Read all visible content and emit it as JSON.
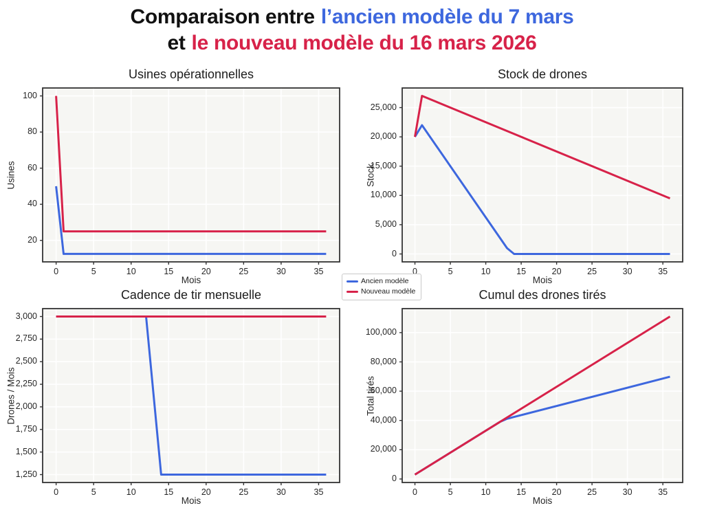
{
  "header": {
    "line1_prefix": "Comparaison entre",
    "line1_old_model": "l’ancien modèle du 7 mars",
    "line2_prefix": "et",
    "line2_new_model": "le nouveau modèle du 16 mars 2026"
  },
  "colors": {
    "old_model_blue": "#3D67DE",
    "new_model_red": "#D72249",
    "title_black": "#111111",
    "axis_text": "#262626",
    "plot_bg": "#F6F6F3",
    "grid": "#FFFFFF",
    "spine": "#333333"
  },
  "legend": {
    "items": [
      {
        "label": "Ancien modèle",
        "color": "#3D67DE"
      },
      {
        "label": "Nouveau modèle",
        "color": "#D72249"
      }
    ]
  },
  "chart_data": [
    {
      "type": "line",
      "title": "Usines opérationnelles",
      "xlabel": "Mois",
      "ylabel": "Usines",
      "xlim": [
        -1.8,
        37.8
      ],
      "ylim": [
        8.1,
        104.4
      ],
      "xticks": [
        0,
        5,
        10,
        15,
        20,
        25,
        30,
        35
      ],
      "yticks": [
        20,
        40,
        60,
        80,
        100
      ],
      "grid": true,
      "legend_position": "figure-center",
      "series": [
        {
          "name": "Ancien modèle",
          "color": "#3D67DE",
          "points": [
            [
              0,
              50
            ],
            [
              1,
              12.5
            ],
            [
              36,
              12.5
            ]
          ]
        },
        {
          "name": "Nouveau modèle",
          "color": "#D72249",
          "points": [
            [
              0,
              100
            ],
            [
              1,
              25
            ],
            [
              36,
              25
            ]
          ]
        }
      ]
    },
    {
      "type": "line",
      "title": "Stock de drones",
      "xlabel": "Mois",
      "ylabel": "Stock",
      "xlim": [
        -1.8,
        37.8
      ],
      "ylim": [
        -1350,
        28350
      ],
      "xticks": [
        0,
        5,
        10,
        15,
        20,
        25,
        30,
        35
      ],
      "yticks": [
        0,
        5000,
        10000,
        15000,
        20000,
        25000
      ],
      "grid": true,
      "series": [
        {
          "name": "Ancien modèle",
          "color": "#3D67DE",
          "points": [
            [
              0,
              20000
            ],
            [
              1,
              22000
            ],
            [
              13,
              1000
            ],
            [
              14,
              0
            ],
            [
              36,
              0
            ]
          ]
        },
        {
          "name": "Nouveau modèle",
          "color": "#D72249",
          "points": [
            [
              0,
              20000
            ],
            [
              1,
              27000
            ],
            [
              36,
              9500
            ]
          ]
        }
      ]
    },
    {
      "type": "line",
      "title": "Cadence de tir mensuelle",
      "xlabel": "Mois",
      "ylabel": "Drones / Mois",
      "xlim": [
        -1.8,
        37.8
      ],
      "ylim": [
        1162.5,
        3087.5
      ],
      "xticks": [
        0,
        5,
        10,
        15,
        20,
        25,
        30,
        35
      ],
      "yticks": [
        1250,
        1500,
        1750,
        2000,
        2250,
        2500,
        2750,
        3000
      ],
      "grid": true,
      "series": [
        {
          "name": "Ancien modèle",
          "color": "#3D67DE",
          "points": [
            [
              0,
              3000
            ],
            [
              12,
              3000
            ],
            [
              14,
              1250
            ],
            [
              36,
              1250
            ]
          ]
        },
        {
          "name": "Nouveau modèle",
          "color": "#D72249",
          "points": [
            [
              0,
              3000
            ],
            [
              36,
              3000
            ]
          ]
        }
      ]
    },
    {
      "type": "line",
      "title": "Cumul des drones tirés",
      "xlabel": "Mois",
      "ylabel": "Total tirés",
      "xlim": [
        -1.8,
        37.8
      ],
      "ylim": [
        -2400,
        116400
      ],
      "xticks": [
        0,
        5,
        10,
        15,
        20,
        25,
        30,
        35
      ],
      "yticks": [
        0,
        20000,
        40000,
        60000,
        80000,
        100000
      ],
      "grid": true,
      "series": [
        {
          "name": "Ancien modèle",
          "color": "#3D67DE",
          "points": [
            [
              0,
              3000
            ],
            [
              12,
              39000
            ],
            [
              13,
              41125
            ],
            [
              14,
              42375
            ],
            [
              36,
              69875
            ]
          ]
        },
        {
          "name": "Nouveau modèle",
          "color": "#D72249",
          "points": [
            [
              0,
              3000
            ],
            [
              36,
              111000
            ]
          ]
        }
      ]
    }
  ]
}
